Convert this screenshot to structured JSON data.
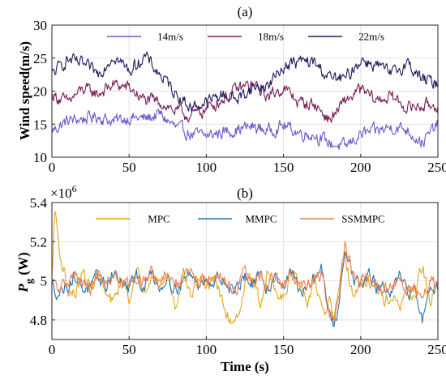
{
  "chart_data": [
    {
      "type": "line",
      "title": "(a)",
      "xlabel": "",
      "ylabel": "Wind speed(m/s)",
      "xlim": [
        0,
        250
      ],
      "ylim": [
        10,
        30
      ],
      "xticks": [
        "0",
        "50",
        "100",
        "150",
        "200",
        "250"
      ],
      "yticks": [
        "10",
        "15",
        "20",
        "25",
        "30"
      ],
      "grid": true,
      "legend_position": "top",
      "x_step": 10,
      "series": [
        {
          "name": "14m/s",
          "color": "#6a5acd",
          "x": [
            0,
            10,
            20,
            30,
            40,
            50,
            60,
            70,
            80,
            90,
            100,
            110,
            120,
            130,
            140,
            150,
            160,
            170,
            180,
            190,
            200,
            210,
            220,
            230,
            240,
            250
          ],
          "values": [
            14.0,
            15.5,
            15.8,
            16.2,
            15.4,
            16.0,
            15.8,
            16.5,
            14.5,
            13.5,
            13.2,
            13.8,
            14.2,
            14.6,
            14.0,
            14.8,
            13.7,
            13.4,
            12.1,
            11.5,
            13.5,
            13.9,
            14.6,
            14.2,
            12.2,
            15.0
          ]
        },
        {
          "name": "18m/s",
          "color": "#7b1e5a",
          "x": [
            0,
            10,
            20,
            30,
            40,
            50,
            60,
            70,
            80,
            90,
            100,
            110,
            120,
            130,
            140,
            150,
            160,
            170,
            180,
            190,
            200,
            210,
            220,
            230,
            240,
            250
          ],
          "values": [
            19.5,
            18.3,
            20.3,
            19.6,
            21.0,
            20.5,
            18.6,
            18.4,
            17.0,
            16.2,
            17.3,
            18.7,
            20.3,
            21.0,
            19.2,
            20.5,
            18.3,
            18.0,
            15.6,
            18.5,
            20.2,
            18.6,
            19.2,
            17.5,
            17.8,
            18.0
          ]
        },
        {
          "name": "22m/s",
          "color": "#1e1a5c",
          "x": [
            0,
            10,
            20,
            30,
            40,
            50,
            60,
            70,
            80,
            90,
            100,
            110,
            120,
            130,
            140,
            150,
            160,
            170,
            180,
            190,
            200,
            210,
            220,
            230,
            240,
            250
          ],
          "values": [
            22.5,
            24.8,
            24.0,
            22.6,
            25.5,
            23.0,
            25.3,
            22.5,
            19.8,
            17.5,
            18.3,
            19.5,
            18.8,
            20.5,
            20.8,
            23.8,
            24.5,
            24.3,
            22.0,
            21.8,
            24.8,
            24.0,
            22.5,
            24.3,
            21.8,
            21.0
          ]
        }
      ]
    },
    {
      "type": "line",
      "title": "(b)",
      "xlabel": "Time (s)",
      "ylabel": "P_g (W)",
      "ylabel_main": "P",
      "ylabel_sub": "g",
      "ylabel_unit": " (W)",
      "exponent_base": "×10",
      "exponent_power": "6",
      "xlim": [
        0,
        250
      ],
      "ylim": [
        4.7,
        5.4
      ],
      "xticks": [
        "0",
        "50",
        "100",
        "150",
        "200",
        "250"
      ],
      "yticks": [
        "4.8",
        "5",
        "5.2",
        "5.4"
      ],
      "ytick_values": [
        4.8,
        5.0,
        5.2,
        5.4
      ],
      "grid": true,
      "legend_position": "top",
      "series": [
        {
          "name": "MPC",
          "color": "#e8a317",
          "x": [
            0,
            2,
            4,
            6,
            8,
            10,
            15,
            20,
            25,
            30,
            35,
            40,
            45,
            50,
            55,
            60,
            65,
            70,
            75,
            80,
            85,
            90,
            95,
            100,
            105,
            110,
            115,
            120,
            125,
            130,
            135,
            140,
            145,
            150,
            155,
            160,
            165,
            170,
            175,
            180,
            182,
            185,
            188,
            190,
            195,
            200,
            205,
            210,
            215,
            220,
            225,
            230,
            235,
            240,
            245,
            250
          ],
          "values": [
            5.0,
            5.38,
            5.22,
            5.1,
            5.05,
            4.95,
            4.93,
            5.04,
            4.96,
            5.05,
            4.92,
            4.88,
            5.02,
            4.92,
            5.03,
            4.96,
            5.06,
            4.98,
            5.03,
            4.86,
            5.05,
            4.92,
            5.03,
            4.96,
            5.04,
            4.89,
            4.8,
            4.82,
            4.98,
            5.05,
            4.85,
            5.05,
            4.95,
            4.93,
            5.05,
            4.98,
            4.86,
            5.02,
            4.82,
            4.9,
            4.78,
            4.88,
            5.05,
            5.12,
            4.92,
            4.98,
            5.0,
            4.96,
            4.9,
            4.92,
            4.85,
            4.95,
            4.92,
            5.08,
            4.88,
            5.0
          ]
        },
        {
          "name": "MMPC",
          "color": "#1f77b4",
          "x": [
            0,
            5,
            10,
            15,
            20,
            25,
            30,
            35,
            40,
            45,
            50,
            55,
            60,
            65,
            70,
            75,
            80,
            85,
            90,
            95,
            100,
            105,
            110,
            115,
            120,
            125,
            130,
            135,
            140,
            145,
            150,
            155,
            160,
            165,
            170,
            175,
            180,
            183,
            186,
            190,
            193,
            195,
            200,
            205,
            210,
            215,
            220,
            225,
            230,
            235,
            240,
            245,
            250
          ],
          "values": [
            4.97,
            4.94,
            4.98,
            5.02,
            4.97,
            4.95,
            5.02,
            4.97,
            5.05,
            4.98,
            4.96,
            5.02,
            4.97,
            5.04,
            4.96,
            5.03,
            4.96,
            5.0,
            5.05,
            4.96,
            5.03,
            4.99,
            5.03,
            4.96,
            4.96,
            5.03,
            4.97,
            5.02,
            4.96,
            5.04,
            4.97,
            5.05,
            4.96,
            4.94,
            5.02,
            5.06,
            4.82,
            4.75,
            4.88,
            5.18,
            5.12,
            5.02,
            4.97,
            5.03,
            4.97,
            4.96,
            4.93,
            5.02,
            4.93,
            4.96,
            4.8,
            5.0,
            4.97
          ]
        },
        {
          "name": "SSMMPC",
          "color": "#f07f4a",
          "x": [
            0,
            5,
            10,
            15,
            20,
            25,
            30,
            35,
            40,
            45,
            50,
            55,
            60,
            65,
            70,
            75,
            80,
            85,
            90,
            95,
            100,
            105,
            110,
            115,
            120,
            125,
            130,
            135,
            140,
            145,
            150,
            155,
            160,
            165,
            170,
            175,
            180,
            183,
            186,
            190,
            193,
            195,
            200,
            205,
            210,
            215,
            220,
            225,
            230,
            235,
            240,
            245,
            250
          ],
          "values": [
            4.99,
            4.95,
            5.0,
            5.03,
            4.98,
            4.96,
            5.02,
            4.98,
            5.04,
            4.99,
            4.97,
            5.03,
            4.98,
            5.05,
            4.97,
            5.03,
            4.97,
            5.01,
            5.04,
            4.97,
            5.03,
            5.0,
            5.03,
            4.97,
            4.97,
            5.04,
            4.98,
            5.02,
            4.97,
            5.03,
            4.98,
            5.04,
            4.97,
            4.95,
            5.02,
            5.04,
            4.84,
            4.8,
            4.93,
            5.19,
            5.1,
            5.02,
            4.98,
            5.02,
            4.98,
            4.97,
            4.95,
            5.03,
            4.95,
            4.97,
            4.88,
            5.0,
            4.98
          ]
        }
      ]
    }
  ]
}
